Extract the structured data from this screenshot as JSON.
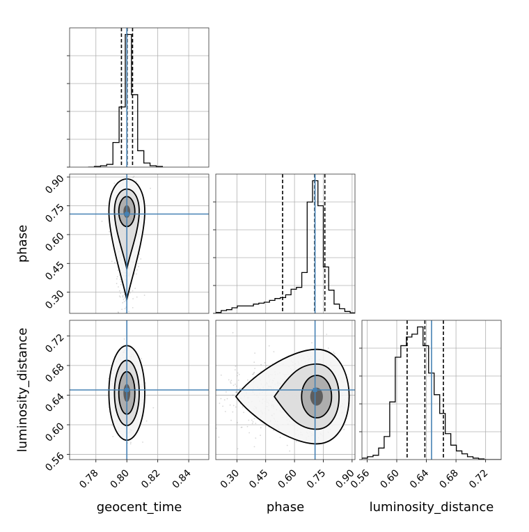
{
  "chart_data": {
    "type": "corner",
    "parameters": [
      "geocent_time",
      "phase",
      "luminosity_distance"
    ],
    "truths": {
      "geocent_time": 0.8,
      "phase": 0.707,
      "luminosity_distance": 0.647
    },
    "colors": {
      "truth": "#4682b4",
      "hist": "#000000",
      "grid": "#b0b0b0",
      "points": "#8a8a8a"
    },
    "grid": true,
    "ranges": {
      "geocent_time": [
        0.763,
        0.853
      ],
      "phase": [
        0.19,
        0.915
      ],
      "luminosity_distance": [
        0.553,
        0.741
      ]
    },
    "ticks": {
      "geocent_time": [
        "0.78",
        "0.80",
        "0.82",
        "0.84"
      ],
      "phase": [
        "0.30",
        "0.45",
        "0.60",
        "0.75",
        "0.90"
      ],
      "luminosity_distance": [
        "0.56",
        "0.60",
        "0.64",
        "0.68",
        "0.72"
      ]
    },
    "quantiles": {
      "geocent_time": [
        0.7965,
        0.8002,
        0.8037
      ],
      "phase": [
        0.538,
        0.705,
        0.758
      ],
      "luminosity_distance": [
        0.614,
        0.638,
        0.663
      ]
    },
    "histograms": {
      "geocent_time": {
        "edges": [
          0.775,
          0.779,
          0.783,
          0.787,
          0.791,
          0.795,
          0.799,
          0.803,
          0.807,
          0.811,
          0.815,
          0.819,
          0.823
        ],
        "counts": [
          0,
          0.5,
          1,
          2,
          18,
          44,
          97,
          53,
          12,
          3,
          1,
          0.5
        ]
      },
      "phase": {
        "edges": [
          0.19,
          0.218,
          0.246,
          0.274,
          0.302,
          0.33,
          0.358,
          0.386,
          0.414,
          0.442,
          0.47,
          0.498,
          0.526,
          0.554,
          0.582,
          0.61,
          0.638,
          0.666,
          0.694,
          0.722,
          0.75,
          0.778,
          0.806,
          0.834,
          0.862,
          0.89,
          0.915
        ],
        "counts": [
          1,
          3,
          4,
          6,
          8,
          8,
          8,
          10,
          11,
          12,
          14,
          16,
          17,
          20,
          26,
          28,
          44,
          120,
          143,
          116,
          50,
          25,
          10,
          5,
          2,
          0.5
        ]
      },
      "luminosity_distance": {
        "edges": [
          0.553,
          0.5605,
          0.568,
          0.5755,
          0.583,
          0.5905,
          0.598,
          0.6055,
          0.613,
          0.6205,
          0.628,
          0.6355,
          0.643,
          0.6505,
          0.658,
          0.6655,
          0.673,
          0.6805,
          0.688,
          0.6955,
          0.703,
          0.7105,
          0.718,
          0.7255,
          0.733,
          0.741
        ],
        "counts": [
          1,
          2,
          3,
          8,
          16,
          40,
          71,
          79,
          85,
          87,
          92,
          79,
          60,
          45,
          32,
          18,
          10,
          6,
          4,
          2,
          1,
          0.5,
          0,
          0,
          0
        ]
      }
    },
    "panels_2d": [
      {
        "x": "geocent_time",
        "y": "phase",
        "center": [
          0.8,
          0.72
        ],
        "spread": [
          0.004,
          0.06
        ],
        "tail": "down"
      },
      {
        "x": "geocent_time",
        "y": "luminosity_distance",
        "center": [
          0.8,
          0.643
        ],
        "spread": [
          0.004,
          0.022
        ],
        "tail": "none"
      },
      {
        "x": "phase",
        "y": "luminosity_distance",
        "center": [
          0.715,
          0.638
        ],
        "spread": [
          0.06,
          0.022
        ],
        "tail": "left"
      }
    ]
  }
}
